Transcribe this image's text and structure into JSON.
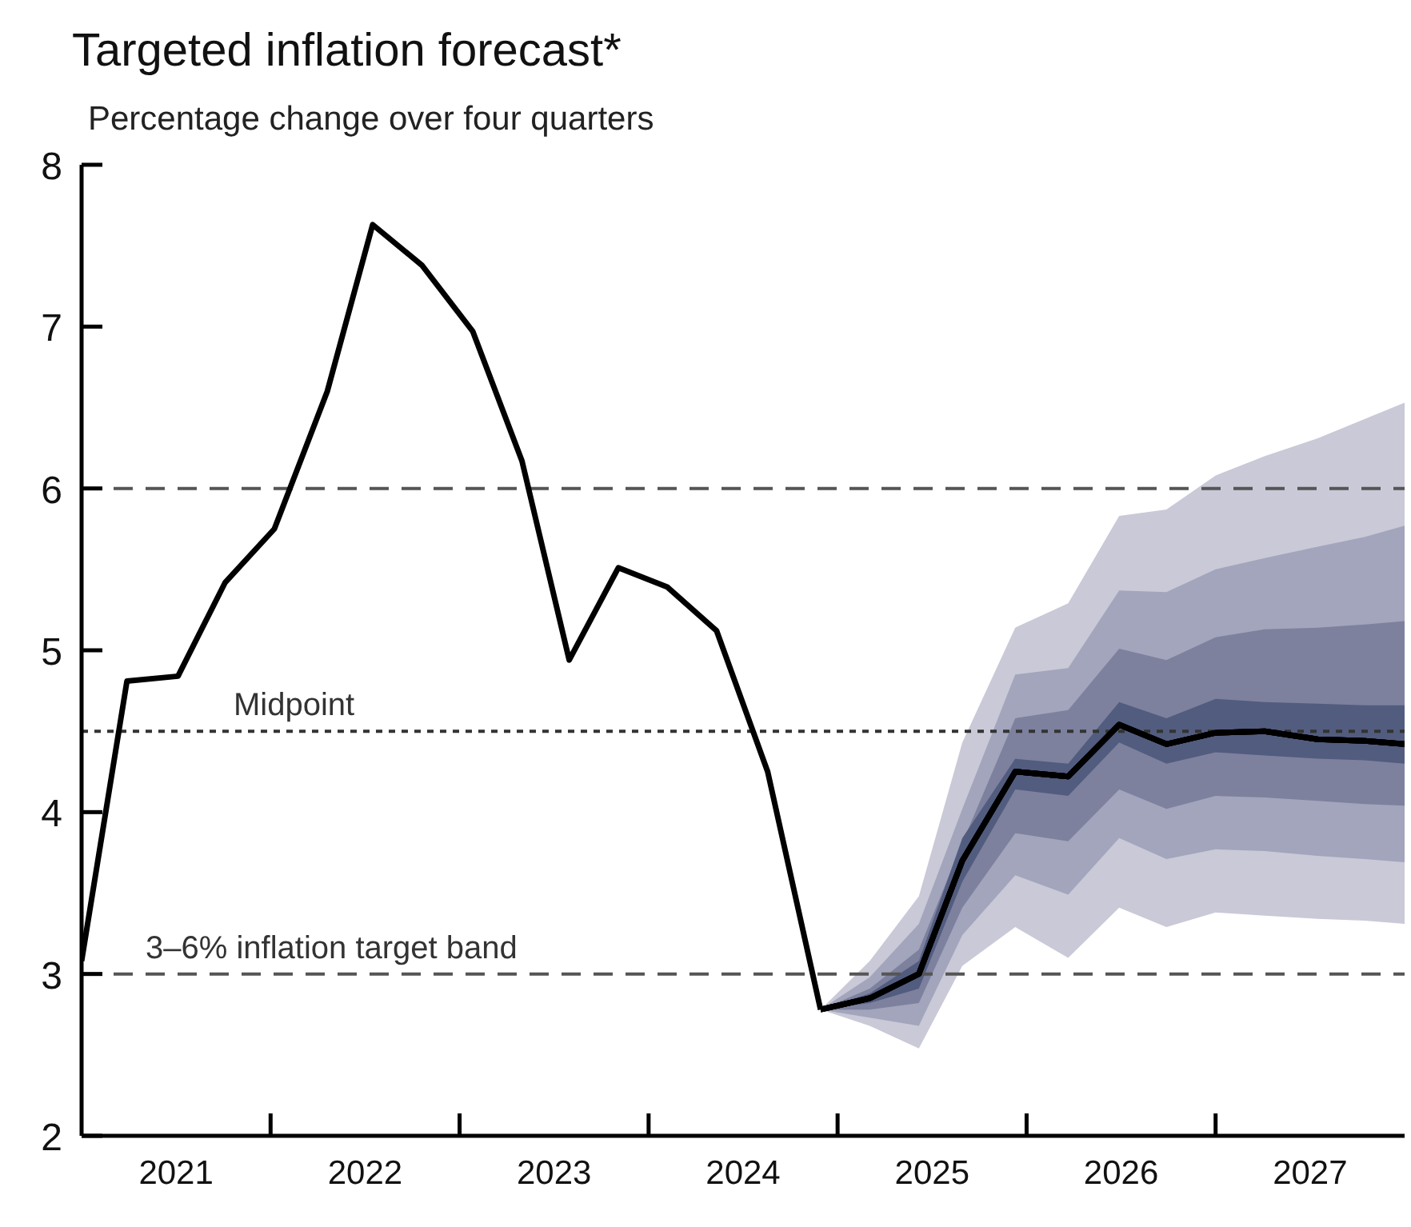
{
  "chart_data": {
    "type": "line",
    "title": "Targeted inflation forecast*",
    "subtitle": "Percentage change over four quarters",
    "xlim": [
      2021,
      2028
    ],
    "xticks": [
      {
        "value": 2021.5,
        "label": "2021"
      },
      {
        "value": 2022,
        "label": null
      },
      {
        "value": 2022.5,
        "label": "2022"
      },
      {
        "value": 2023,
        "label": null
      },
      {
        "value": 2023.5,
        "label": "2023"
      },
      {
        "value": 2024,
        "label": null
      },
      {
        "value": 2024.5,
        "label": "2024"
      },
      {
        "value": 2025,
        "label": null
      },
      {
        "value": 2025.5,
        "label": "2025"
      },
      {
        "value": 2026,
        "label": null
      },
      {
        "value": 2026.5,
        "label": "2026"
      },
      {
        "value": 2027,
        "label": null
      },
      {
        "value": 2027.5,
        "label": "2027"
      }
    ],
    "ylim": [
      2,
      8
    ],
    "yticks": [
      2,
      3,
      4,
      5,
      6,
      7,
      8
    ],
    "series": [
      {
        "color": "#000000",
        "x": [
          2021.0,
          2021.24,
          2021.51,
          2021.76,
          2022.02,
          2022.3,
          2022.54,
          2022.8,
          2023.07,
          2023.33,
          2023.58,
          2023.84,
          2024.1,
          2024.36,
          2024.63,
          2024.91
        ],
        "values": [
          3.08,
          4.81,
          4.84,
          5.42,
          5.75,
          6.6,
          7.63,
          7.38,
          6.97,
          6.17,
          4.94,
          5.51,
          5.39,
          5.12,
          4.25,
          2.78
        ]
      },
      {
        "color": "#000000",
        "x": [
          2024.91,
          2025.17,
          2025.43,
          2025.66,
          2025.94,
          2026.22,
          2026.49,
          2026.74,
          2027.0,
          2027.26,
          2027.54,
          2027.79,
          2028.0
        ],
        "values": [
          2.78,
          2.85,
          3.0,
          3.7,
          4.25,
          4.22,
          4.54,
          4.42,
          4.49,
          4.5,
          4.45,
          4.44,
          4.42
        ],
        "lower": [
          2.78,
          2.68,
          2.54,
          3.05,
          3.29,
          3.1,
          3.41,
          3.29,
          3.38,
          3.36,
          3.34,
          3.33,
          3.31
        ],
        "upper": [
          2.78,
          3.08,
          3.48,
          4.43,
          5.14,
          5.29,
          5.83,
          5.87,
          6.08,
          6.2,
          6.31,
          6.43,
          6.53
        ]
      },
      {
        "color": "#000000",
        "x": [
          2024.91,
          2025.17,
          2025.43,
          2025.66,
          2025.94,
          2026.22,
          2026.49,
          2026.74,
          2027.0,
          2027.26,
          2027.54,
          2027.79,
          2028.0
        ],
        "values": [
          2.78,
          2.85,
          3.0,
          3.7,
          4.25,
          4.22,
          4.54,
          4.42,
          4.49,
          4.5,
          4.45,
          4.44,
          4.42
        ],
        "lower": [
          2.78,
          2.73,
          2.68,
          3.24,
          3.61,
          3.49,
          3.84,
          3.71,
          3.77,
          3.76,
          3.73,
          3.71,
          3.69
        ],
        "upper": [
          2.78,
          2.98,
          3.31,
          4.02,
          4.85,
          4.89,
          5.37,
          5.36,
          5.5,
          5.57,
          5.64,
          5.7,
          5.77
        ]
      },
      {
        "color": "#000000",
        "x": [
          2024.91,
          2025.17,
          2025.43,
          2025.66,
          2025.94,
          2026.22,
          2026.49,
          2026.74,
          2027.0,
          2027.26,
          2027.54,
          2027.79,
          2028.0
        ],
        "values": [
          2.78,
          2.85,
          3.0,
          3.7,
          4.25,
          4.22,
          4.54,
          4.42,
          4.49,
          4.5,
          4.45,
          4.44,
          4.42
        ],
        "lower": [
          2.78,
          2.78,
          2.82,
          3.41,
          3.87,
          3.82,
          4.14,
          4.02,
          4.1,
          4.09,
          4.07,
          4.05,
          4.04
        ],
        "upper": [
          2.78,
          2.91,
          3.15,
          3.81,
          4.58,
          4.63,
          5.01,
          4.94,
          5.08,
          5.13,
          5.14,
          5.16,
          5.18
        ]
      },
      {
        "color": "#000000",
        "x": [
          2024.91,
          2025.17,
          2025.43,
          2025.66,
          2025.94,
          2026.22,
          2026.49,
          2026.74,
          2027.0,
          2027.26,
          2027.54,
          2027.79,
          2028.0
        ],
        "values": [
          2.78,
          2.85,
          3.0,
          3.7,
          4.25,
          4.22,
          4.54,
          4.42,
          4.49,
          4.5,
          4.45,
          4.44,
          4.42
        ],
        "lower": [
          2.78,
          2.82,
          2.91,
          3.57,
          4.14,
          4.1,
          4.43,
          4.3,
          4.37,
          4.35,
          4.33,
          4.32,
          4.3
        ],
        "upper": [
          2.78,
          2.88,
          3.08,
          3.84,
          4.33,
          4.3,
          4.68,
          4.58,
          4.7,
          4.68,
          4.67,
          4.66,
          4.66
        ]
      }
    ],
    "ref_lines": [
      {
        "axis": "y",
        "value": 6,
        "label": null,
        "color": "#555555",
        "line_style": "dashed"
      },
      {
        "axis": "y",
        "value": 4.5,
        "label": "Midpoint",
        "color": "#333333",
        "line_style": "dotted"
      },
      {
        "axis": "y",
        "value": 3,
        "label": "3–6% inflation target band",
        "color": "#555555",
        "line_style": "dashed"
      }
    ]
  }
}
